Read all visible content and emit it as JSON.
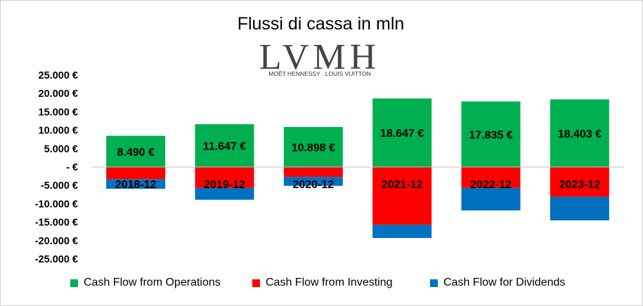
{
  "chart_data": {
    "type": "bar",
    "stacked": true,
    "title": "Flussi di cassa in mln",
    "logo": {
      "main": "LVMH",
      "sub": "MOËT HENNESSY . LOUIS VUITTON"
    },
    "categories": [
      "2018-12",
      "2019-12",
      "2020-12",
      "2021-12",
      "2022-12",
      "2023-12"
    ],
    "series": [
      {
        "name": "Cash Flow from Operations",
        "color": "#00b050",
        "values": [
          8490,
          11647,
          10898,
          18647,
          17835,
          18403
        ]
      },
      {
        "name": "Cash Flow from Investing",
        "color": "#ff0000",
        "values": [
          -3300,
          -5700,
          -2700,
          -15700,
          -5700,
          -8100
        ]
      },
      {
        "name": "Cash Flow for Dividends",
        "color": "#0070c0",
        "values": [
          -2600,
          -3200,
          -2400,
          -3600,
          -6100,
          -6400
        ]
      }
    ],
    "data_labels": [
      "8.490 €",
      "11.647 €",
      "10.898 €",
      "18.647 €",
      "17.835 €",
      "18.403 €"
    ],
    "yticks": [
      {
        "value": 25000,
        "label": "25.000 €"
      },
      {
        "value": 20000,
        "label": "20.000 €"
      },
      {
        "value": 15000,
        "label": "15.000 €"
      },
      {
        "value": 10000,
        "label": "10.000 €"
      },
      {
        "value": 5000,
        "label": "5.000 €"
      },
      {
        "value": 0,
        "label": "-   €"
      },
      {
        "value": -5000,
        "label": "-5.000 €"
      },
      {
        "value": -10000,
        "label": "-10.000 €"
      },
      {
        "value": -15000,
        "label": "-15.000 €"
      },
      {
        "value": -20000,
        "label": "-20.000 €"
      },
      {
        "value": -25000,
        "label": "-25.000 €"
      }
    ],
    "ylim": [
      -25000,
      25000
    ],
    "grid": false,
    "legend_position": "bottom"
  }
}
